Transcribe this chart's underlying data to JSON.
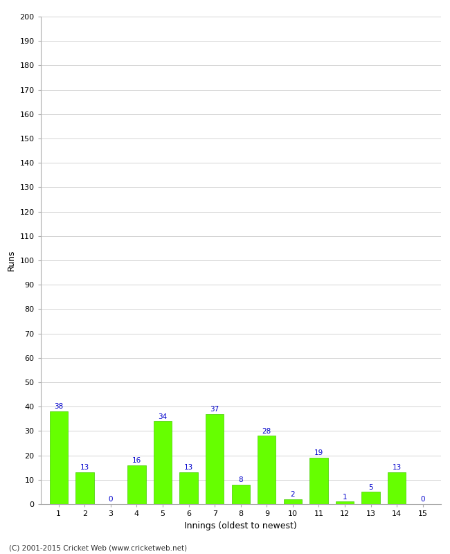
{
  "innings": [
    1,
    2,
    3,
    4,
    5,
    6,
    7,
    8,
    9,
    10,
    11,
    12,
    13,
    14,
    15
  ],
  "runs": [
    38,
    13,
    0,
    16,
    34,
    13,
    37,
    8,
    28,
    2,
    19,
    1,
    5,
    13,
    0
  ],
  "bar_color": "#66ff00",
  "bar_edge_color": "#44cc00",
  "label_color_blue": "#0000cc",
  "xlabel": "Innings (oldest to newest)",
  "ylabel": "Runs",
  "ylim": [
    0,
    200
  ],
  "footer": "(C) 2001-2015 Cricket Web (www.cricketweb.net)",
  "background_color": "#ffffff",
  "grid_color": "#cccccc"
}
